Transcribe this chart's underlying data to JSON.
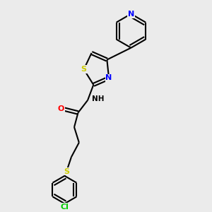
{
  "background_color": "#ebebeb",
  "bond_color": "#000000",
  "atom_colors": {
    "N": "#0000ff",
    "O": "#ff0000",
    "S": "#cccc00",
    "Cl": "#00cc00",
    "C": "#000000",
    "H": "#000000"
  },
  "figsize": [
    3.0,
    3.0
  ],
  "dpi": 100,
  "xlim": [
    2.0,
    9.0
  ],
  "ylim": [
    0.0,
    10.5
  ]
}
